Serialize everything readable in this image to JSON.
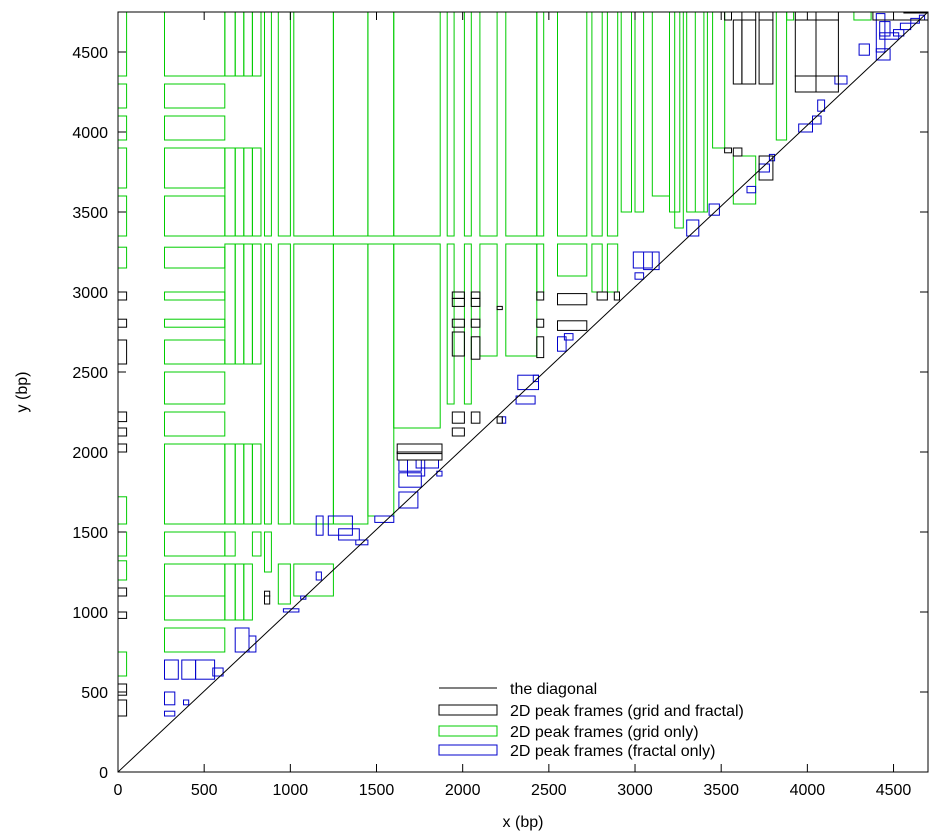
{
  "chart_data": {
    "type": "scatter",
    "xlabel": "x (bp)",
    "ylabel": "y (bp)",
    "xlim": [
      0,
      4700
    ],
    "ylim": [
      0,
      4750
    ],
    "xticks": [
      0,
      500,
      1000,
      1500,
      2000,
      2500,
      3000,
      3500,
      4000,
      4500
    ],
    "yticks": [
      0,
      500,
      1000,
      1500,
      2000,
      2500,
      3000,
      3500,
      4000,
      4500
    ],
    "grid": false,
    "legend_position": "bottom-right",
    "colors": {
      "diagonal": "#000000",
      "both": "#000000",
      "grid": "#00cc00",
      "fractal": "#0000cc"
    },
    "series": [
      {
        "name": "the diagonal",
        "kind": "line",
        "points": [
          [
            0,
            0
          ],
          [
            4700,
            4750
          ]
        ]
      },
      {
        "name": "2D peak frames (grid and fractal)",
        "kind": "frames",
        "frames": [
          [
            0,
            50,
            350,
            450
          ],
          [
            0,
            50,
            480,
            550
          ],
          [
            0,
            50,
            960,
            1000
          ],
          [
            0,
            50,
            1100,
            1150
          ],
          [
            0,
            50,
            2000,
            2050
          ],
          [
            0,
            50,
            2100,
            2150
          ],
          [
            0,
            50,
            2190,
            2250
          ],
          [
            0,
            50,
            2550,
            2700
          ],
          [
            0,
            50,
            2780,
            2830
          ],
          [
            0,
            50,
            2950,
            3000
          ],
          [
            850,
            880,
            1050,
            1100
          ],
          [
            850,
            880,
            1100,
            1130
          ],
          [
            1620,
            1880,
            1950,
            2000
          ],
          [
            1620,
            1880,
            1990,
            2050
          ],
          [
            1940,
            2010,
            2100,
            2150
          ],
          [
            1940,
            2010,
            2180,
            2250
          ],
          [
            1940,
            2010,
            2600,
            2750
          ],
          [
            1940,
            2010,
            2780,
            2830
          ],
          [
            1940,
            2010,
            2910,
            2960
          ],
          [
            1940,
            2010,
            2960,
            3000
          ],
          [
            2050,
            2100,
            2180,
            2250
          ],
          [
            2050,
            2100,
            2580,
            2720
          ],
          [
            2050,
            2100,
            2780,
            2830
          ],
          [
            2050,
            2100,
            2910,
            2960
          ],
          [
            2050,
            2100,
            2960,
            3000
          ],
          [
            2200,
            2230,
            2180,
            2220
          ],
          [
            2200,
            2230,
            2890,
            2910
          ],
          [
            2430,
            2470,
            2590,
            2720
          ],
          [
            2430,
            2470,
            2780,
            2830
          ],
          [
            2430,
            2470,
            2950,
            3000
          ],
          [
            2550,
            2720,
            2760,
            2820
          ],
          [
            2550,
            2720,
            2920,
            2990
          ],
          [
            2780,
            2840,
            2950,
            3000
          ],
          [
            2880,
            2910,
            2950,
            3000
          ],
          [
            3520,
            3560,
            3870,
            3900
          ],
          [
            3520,
            3560,
            4700,
            4750
          ],
          [
            3570,
            3620,
            3850,
            3900
          ],
          [
            3570,
            3620,
            4300,
            4700
          ],
          [
            3620,
            3700,
            4700,
            4750
          ],
          [
            3620,
            3700,
            4300,
            4700
          ],
          [
            3720,
            3800,
            3700,
            3850
          ],
          [
            3720,
            3800,
            4300,
            4700
          ],
          [
            3720,
            3800,
            4700,
            4750
          ],
          [
            3930,
            4050,
            4350,
            4700
          ],
          [
            3930,
            4050,
            4250,
            4350
          ],
          [
            3930,
            4050,
            4700,
            4750
          ],
          [
            4050,
            4180,
            4350,
            4700
          ],
          [
            4050,
            4180,
            4250,
            4350
          ],
          [
            4050,
            4180,
            4700,
            4750
          ],
          [
            4380,
            4700,
            4700,
            4750
          ],
          [
            4560,
            4700,
            4750,
            4750
          ]
        ]
      },
      {
        "name": "2D peak frames (grid only)",
        "kind": "frames",
        "frames": [
          [
            0,
            50,
            4350,
            4750
          ],
          [
            0,
            50,
            4150,
            4300
          ],
          [
            0,
            50,
            3950,
            4100
          ],
          [
            0,
            50,
            3650,
            3900
          ],
          [
            0,
            50,
            3350,
            3600
          ],
          [
            0,
            50,
            3150,
            3280
          ],
          [
            0,
            50,
            1550,
            1720
          ],
          [
            0,
            50,
            1350,
            1500
          ],
          [
            0,
            50,
            1200,
            1320
          ],
          [
            0,
            50,
            600,
            750
          ],
          [
            270,
            620,
            4350,
            4750
          ],
          [
            270,
            620,
            4150,
            4300
          ],
          [
            270,
            620,
            3950,
            4100
          ],
          [
            270,
            620,
            3650,
            3900
          ],
          [
            270,
            620,
            3350,
            3600
          ],
          [
            270,
            620,
            3150,
            3280
          ],
          [
            270,
            620,
            2950,
            3000
          ],
          [
            270,
            620,
            2780,
            2830
          ],
          [
            270,
            620,
            2550,
            2700
          ],
          [
            270,
            620,
            2300,
            2500
          ],
          [
            270,
            620,
            2100,
            2250
          ],
          [
            270,
            620,
            1550,
            2050
          ],
          [
            270,
            620,
            1350,
            1500
          ],
          [
            270,
            620,
            1100,
            1300
          ],
          [
            270,
            620,
            950,
            1100
          ],
          [
            270,
            620,
            750,
            900
          ],
          [
            620,
            680,
            4350,
            4750
          ],
          [
            620,
            680,
            3350,
            3900
          ],
          [
            620,
            680,
            2550,
            3300
          ],
          [
            620,
            680,
            1550,
            2050
          ],
          [
            620,
            680,
            1350,
            1500
          ],
          [
            620,
            680,
            950,
            1300
          ],
          [
            680,
            730,
            4350,
            4750
          ],
          [
            680,
            730,
            3350,
            3900
          ],
          [
            680,
            730,
            2550,
            3300
          ],
          [
            680,
            730,
            1550,
            2050
          ],
          [
            680,
            730,
            950,
            1300
          ],
          [
            730,
            780,
            4350,
            4750
          ],
          [
            730,
            780,
            3350,
            3900
          ],
          [
            730,
            780,
            2550,
            3300
          ],
          [
            730,
            780,
            1550,
            2050
          ],
          [
            730,
            780,
            950,
            1300
          ],
          [
            780,
            830,
            4350,
            4750
          ],
          [
            780,
            830,
            3350,
            3900
          ],
          [
            780,
            830,
            2550,
            3300
          ],
          [
            780,
            830,
            1550,
            2050
          ],
          [
            780,
            830,
            1350,
            1500
          ],
          [
            850,
            890,
            3350,
            4750
          ],
          [
            850,
            890,
            1550,
            3300
          ],
          [
            850,
            890,
            1250,
            1500
          ],
          [
            930,
            1000,
            3350,
            4750
          ],
          [
            930,
            1000,
            1550,
            3300
          ],
          [
            930,
            1000,
            1050,
            1300
          ],
          [
            1020,
            1250,
            3350,
            4750
          ],
          [
            1020,
            1250,
            1550,
            3300
          ],
          [
            1020,
            1250,
            1100,
            1300
          ],
          [
            1250,
            1450,
            3350,
            4750
          ],
          [
            1250,
            1450,
            1550,
            3300
          ],
          [
            1450,
            1600,
            3350,
            4750
          ],
          [
            1450,
            1600,
            1600,
            3300
          ],
          [
            1600,
            1870,
            3350,
            4750
          ],
          [
            1600,
            1870,
            2150,
            3300
          ],
          [
            1910,
            1950,
            3350,
            4750
          ],
          [
            1910,
            1950,
            2300,
            3300
          ],
          [
            2010,
            2050,
            3350,
            4750
          ],
          [
            2010,
            2050,
            2300,
            3300
          ],
          [
            2100,
            2200,
            3350,
            4750
          ],
          [
            2100,
            2200,
            2600,
            3300
          ],
          [
            2250,
            2430,
            3350,
            4750
          ],
          [
            2250,
            2430,
            2600,
            3300
          ],
          [
            2430,
            2470,
            3350,
            4750
          ],
          [
            2430,
            2470,
            3000,
            3300
          ],
          [
            2550,
            2720,
            3350,
            4750
          ],
          [
            2550,
            2720,
            3100,
            3300
          ],
          [
            2750,
            2810,
            3350,
            4750
          ],
          [
            2750,
            2810,
            3000,
            3300
          ],
          [
            2840,
            2900,
            3350,
            4750
          ],
          [
            2840,
            2900,
            3000,
            3300
          ],
          [
            2920,
            2980,
            3500,
            4750
          ],
          [
            3000,
            3050,
            3500,
            4750
          ],
          [
            3100,
            3200,
            3600,
            4750
          ],
          [
            3200,
            3260,
            3500,
            4750
          ],
          [
            3230,
            3280,
            3400,
            4750
          ],
          [
            3300,
            3400,
            3500,
            4750
          ],
          [
            3350,
            3420,
            3500,
            4750
          ],
          [
            3450,
            3520,
            3900,
            4750
          ],
          [
            3570,
            3700,
            3550,
            3850
          ],
          [
            3820,
            3880,
            3950,
            4750
          ],
          [
            3880,
            3920,
            4700,
            4750
          ],
          [
            4270,
            4370,
            4700,
            4750
          ]
        ]
      },
      {
        "name": "2D peak frames (fractal only)",
        "kind": "frames",
        "frames": [
          [
            270,
            330,
            350,
            380
          ],
          [
            270,
            330,
            420,
            500
          ],
          [
            270,
            350,
            580,
            700
          ],
          [
            380,
            410,
            420,
            450
          ],
          [
            370,
            450,
            580,
            700
          ],
          [
            450,
            560,
            580,
            700
          ],
          [
            550,
            610,
            600,
            650
          ],
          [
            680,
            760,
            750,
            900
          ],
          [
            760,
            800,
            750,
            850
          ],
          [
            960,
            1050,
            1000,
            1020
          ],
          [
            1060,
            1090,
            1080,
            1100
          ],
          [
            1150,
            1180,
            1200,
            1250
          ],
          [
            1150,
            1190,
            1480,
            1600
          ],
          [
            1220,
            1360,
            1480,
            1600
          ],
          [
            1280,
            1400,
            1450,
            1520
          ],
          [
            1380,
            1450,
            1420,
            1450
          ],
          [
            1490,
            1600,
            1560,
            1600
          ],
          [
            1630,
            1740,
            1650,
            1750
          ],
          [
            1630,
            1760,
            1780,
            1870
          ],
          [
            1630,
            1760,
            1880,
            1950
          ],
          [
            1680,
            1780,
            1850,
            1950
          ],
          [
            1730,
            1860,
            1900,
            1950
          ],
          [
            1850,
            1880,
            1850,
            1880
          ],
          [
            2230,
            2250,
            2180,
            2220
          ],
          [
            2310,
            2420,
            2300,
            2350
          ],
          [
            2320,
            2440,
            2390,
            2480
          ],
          [
            2410,
            2440,
            2440,
            2480
          ],
          [
            2550,
            2600,
            2630,
            2720
          ],
          [
            2590,
            2640,
            2700,
            2740
          ],
          [
            2990,
            3100,
            3150,
            3250
          ],
          [
            3000,
            3050,
            3080,
            3120
          ],
          [
            3050,
            3140,
            3140,
            3250
          ],
          [
            3300,
            3370,
            3350,
            3450
          ],
          [
            3430,
            3490,
            3480,
            3550
          ],
          [
            3650,
            3700,
            3620,
            3660
          ],
          [
            3720,
            3780,
            3750,
            3800
          ],
          [
            3780,
            3810,
            3820,
            3860
          ],
          [
            3950,
            4030,
            4000,
            4050
          ],
          [
            4030,
            4080,
            4050,
            4100
          ],
          [
            4060,
            4100,
            4130,
            4200
          ],
          [
            4160,
            4230,
            4300,
            4350
          ],
          [
            4300,
            4360,
            4480,
            4550
          ],
          [
            4400,
            4480,
            4450,
            4520
          ],
          [
            4420,
            4530,
            4580,
            4620
          ],
          [
            4500,
            4560,
            4600,
            4640
          ],
          [
            4540,
            4600,
            4640,
            4680
          ],
          [
            4600,
            4650,
            4680,
            4710
          ],
          [
            4650,
            4680,
            4700,
            4730
          ],
          [
            4400,
            4450,
            4500,
            4740
          ],
          [
            4420,
            4480,
            4600,
            4690
          ]
        ]
      }
    ]
  }
}
